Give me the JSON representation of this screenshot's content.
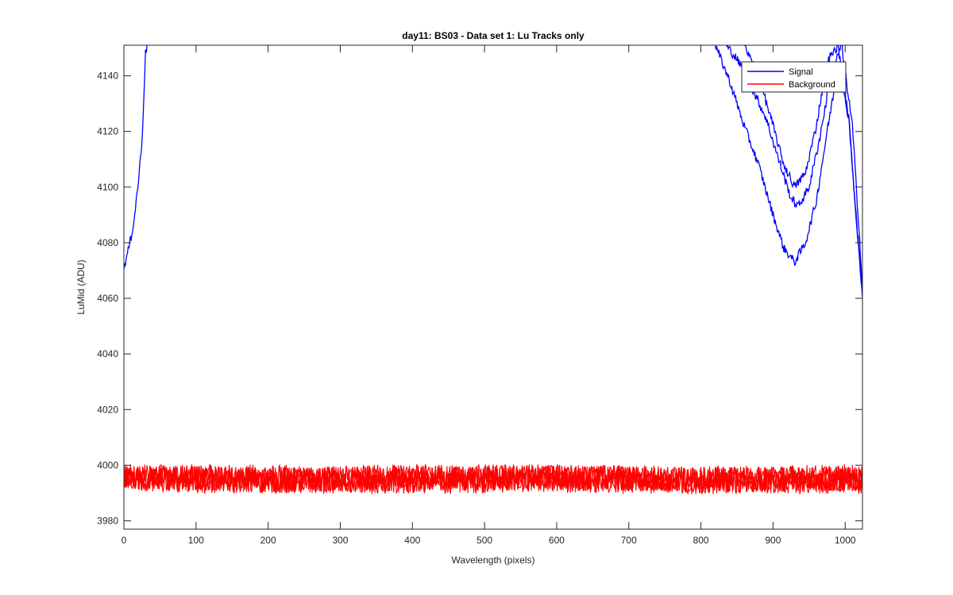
{
  "chart_data": {
    "type": "line",
    "title": "day11: BS03 - Data set 1: Lu Tracks only",
    "xlabel": "Wavelength (pixels)",
    "ylabel": "LuMid (ADU)",
    "xlim": [
      0,
      1024
    ],
    "ylim": [
      3977,
      4151
    ],
    "xticks": [
      0,
      100,
      200,
      300,
      400,
      500,
      600,
      700,
      800,
      900,
      1000
    ],
    "yticks": [
      3980,
      4000,
      4020,
      4040,
      4060,
      4080,
      4100,
      4120,
      4140
    ],
    "grid": false,
    "legend_position": "top-right",
    "series": [
      {
        "name": "Signal",
        "color": "#0000ff",
        "segments": [
          {
            "x": [
              0,
              5,
              10,
              15,
              20,
              25,
              28,
              30,
              32
            ],
            "y": [
              4071,
              4076,
              4082,
              4090,
              4102,
              4116,
              4135,
              4148,
              4151
            ]
          },
          {
            "x": [
              820,
              840,
              860,
              880,
              900,
              915,
              930,
              945,
              960,
              975,
              990,
              1005,
              1015,
              1024
            ],
            "y": [
              4151,
              4138,
              4122,
              4108,
              4090,
              4078,
              4073,
              4080,
              4095,
              4120,
              4143,
              4125,
              4090,
              4060
            ]
          },
          {
            "x": [
              835,
              850,
              870,
              890,
              910,
              925,
              935,
              950,
              965,
              980,
              995,
              1010,
              1020,
              1024
            ],
            "y": [
              4151,
              4146,
              4136,
              4125,
              4108,
              4096,
              4093,
              4100,
              4118,
              4140,
              4151,
              4122,
              4082,
              4062
            ]
          },
          {
            "x": [
              860,
              880,
              900,
              915,
              930,
              945,
              960,
              975,
              990,
              1005,
              1015,
              1024
            ],
            "y": [
              4151,
              4140,
              4122,
              4108,
              4100,
              4105,
              4122,
              4145,
              4151,
              4125,
              4090,
              4064
            ]
          }
        ]
      },
      {
        "name": "Background",
        "color": "#ff0000",
        "mean": 3995,
        "range": [
          3988,
          4000
        ]
      }
    ]
  }
}
